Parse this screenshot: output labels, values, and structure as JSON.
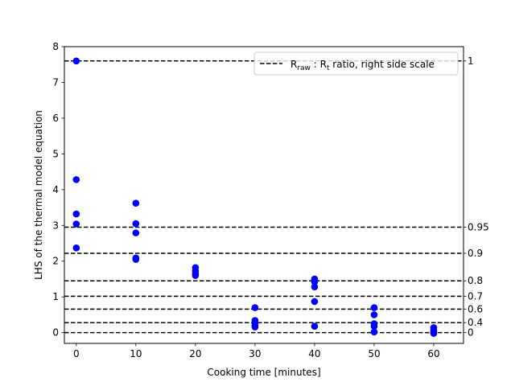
{
  "chart_data": {
    "type": "scatter",
    "title": "",
    "xlabel": "Cooking time [minutes]",
    "ylabel": "LHS of the thermal model equation",
    "xlim": [
      -2,
      65
    ],
    "ylim": [
      -0.3,
      8
    ],
    "x_ticks": [
      0,
      10,
      20,
      30,
      40,
      50,
      60
    ],
    "y_ticks": [
      0,
      1,
      2,
      3,
      4,
      5,
      6,
      7,
      8
    ],
    "grid": false,
    "marker_color": "#0000ff",
    "line_color": "#000000",
    "points": [
      {
        "x": 0,
        "y": 7.6
      },
      {
        "x": 0,
        "y": 4.28
      },
      {
        "x": 0,
        "y": 3.32
      },
      {
        "x": 0,
        "y": 3.04
      },
      {
        "x": 0,
        "y": 2.37
      },
      {
        "x": 10,
        "y": 3.62
      },
      {
        "x": 10,
        "y": 3.05
      },
      {
        "x": 10,
        "y": 2.79
      },
      {
        "x": 10,
        "y": 2.09
      },
      {
        "x": 10,
        "y": 2.05
      },
      {
        "x": 20,
        "y": 1.82
      },
      {
        "x": 20,
        "y": 1.72
      },
      {
        "x": 20,
        "y": 1.64
      },
      {
        "x": 20,
        "y": 1.6
      },
      {
        "x": 30,
        "y": 0.7
      },
      {
        "x": 30,
        "y": 0.34
      },
      {
        "x": 30,
        "y": 0.27
      },
      {
        "x": 30,
        "y": 0.2
      },
      {
        "x": 30,
        "y": 0.16
      },
      {
        "x": 40,
        "y": 1.5
      },
      {
        "x": 40,
        "y": 1.42
      },
      {
        "x": 40,
        "y": 1.28
      },
      {
        "x": 40,
        "y": 0.87
      },
      {
        "x": 40,
        "y": 0.18
      },
      {
        "x": 50,
        "y": 0.7
      },
      {
        "x": 50,
        "y": 0.5
      },
      {
        "x": 50,
        "y": 0.25
      },
      {
        "x": 50,
        "y": 0.18
      },
      {
        "x": 50,
        "y": 0.02
      },
      {
        "x": 60,
        "y": 0.14
      },
      {
        "x": 60,
        "y": 0.06
      },
      {
        "x": 60,
        "y": 0.02
      },
      {
        "x": 60,
        "y": -0.02
      }
    ],
    "reference_lines": [
      {
        "y": 7.6,
        "label": "1"
      },
      {
        "y": 2.95,
        "label": "0.95"
      },
      {
        "y": 2.22,
        "label": "0.9"
      },
      {
        "y": 1.45,
        "label": "0.8"
      },
      {
        "y": 1.02,
        "label": "0.7"
      },
      {
        "y": 0.66,
        "label": "0.6"
      },
      {
        "y": 0.28,
        "label": "0.4"
      },
      {
        "y": 0.0,
        "label": "0"
      }
    ],
    "legend": {
      "position": "top-right",
      "text_main": "R",
      "sub_raw": "raw",
      "text_sep": " : R",
      "sub_t": "t",
      "text_rest": " ratio, right side scale"
    }
  }
}
